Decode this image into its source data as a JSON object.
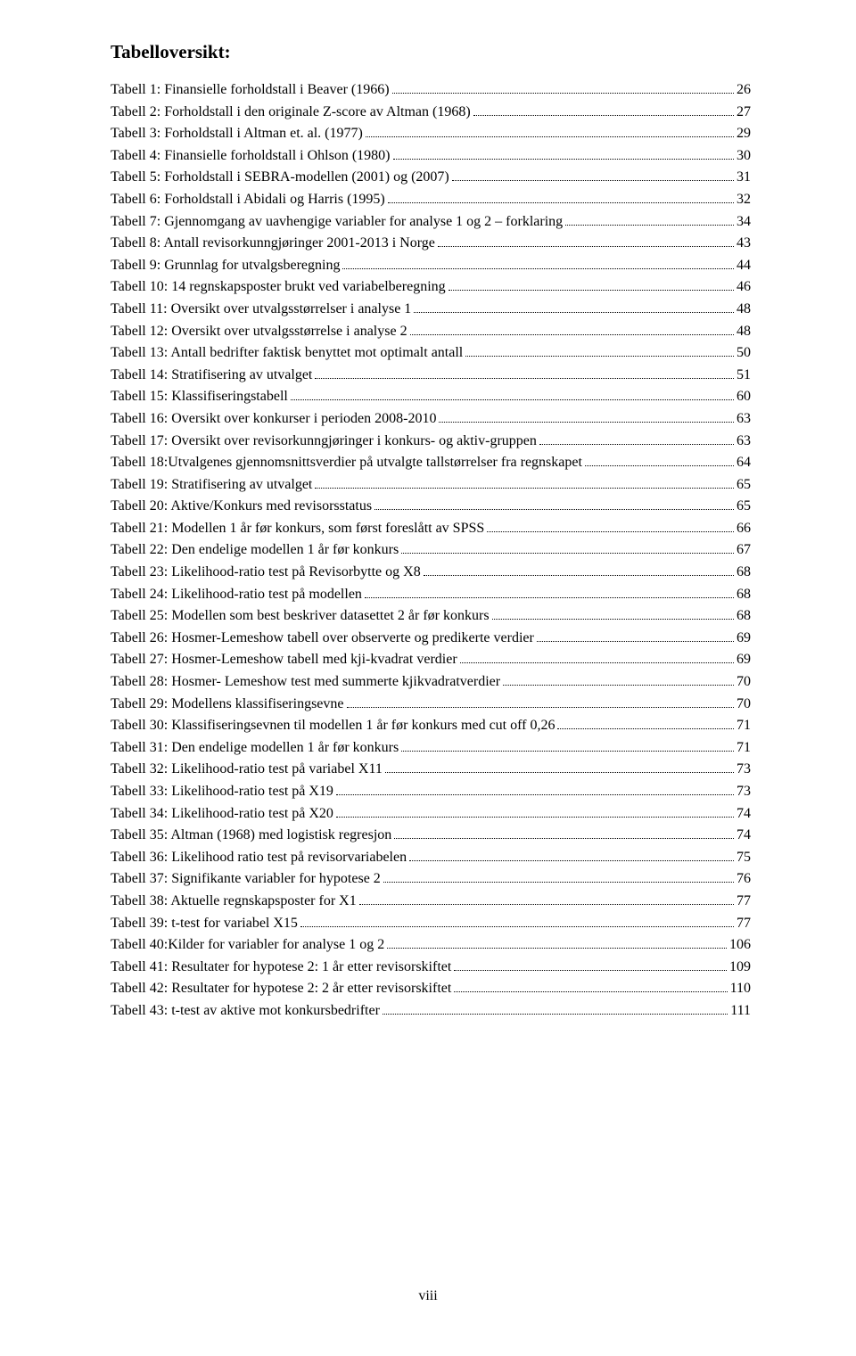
{
  "heading": "Tabelloversikt:",
  "pageFooter": "viii",
  "entries": [
    {
      "label": "Tabell 1: Finansielle forholdstall i Beaver (1966)",
      "page": "26"
    },
    {
      "label": "Tabell 2: Forholdstall i den originale Z-score av Altman (1968)",
      "page": "27"
    },
    {
      "label": "Tabell 3: Forholdstall i Altman et. al. (1977)",
      "page": "29"
    },
    {
      "label": "Tabell 4: Finansielle forholdstall i Ohlson (1980)",
      "page": "30"
    },
    {
      "label": "Tabell 5: Forholdstall i SEBRA-modellen (2001) og (2007)",
      "page": "31"
    },
    {
      "label": "Tabell 6: Forholdstall i Abidali og Harris (1995)",
      "page": "32"
    },
    {
      "label": "Tabell 7: Gjennomgang av uavhengige variabler for analyse 1 og 2 – forklaring",
      "page": "34"
    },
    {
      "label": "Tabell 8: Antall revisorkunngjøringer 2001-2013 i Norge",
      "page": "43"
    },
    {
      "label": "Tabell 9: Grunnlag for utvalgsberegning",
      "page": "44"
    },
    {
      "label": "Tabell 10: 14 regnskapsposter brukt ved variabelberegning",
      "page": "46"
    },
    {
      "label": "Tabell 11: Oversikt over utvalgsstørrelser i analyse 1",
      "page": "48"
    },
    {
      "label": "Tabell 12: Oversikt over utvalgsstørrelse i analyse 2",
      "page": "48"
    },
    {
      "label": "Tabell 13: Antall bedrifter faktisk benyttet mot optimalt antall",
      "page": "50"
    },
    {
      "label": "Tabell 14: Stratifisering av utvalget",
      "page": "51"
    },
    {
      "label": "Tabell 15: Klassifiseringstabell",
      "page": "60"
    },
    {
      "label": "Tabell 16: Oversikt over konkurser i perioden 2008-2010",
      "page": "63"
    },
    {
      "label": "Tabell 17: Oversikt over revisorkunngjøringer i konkurs- og aktiv-gruppen",
      "page": "63"
    },
    {
      "label": "Tabell 18:Utvalgenes gjennomsnittsverdier på utvalgte tallstørrelser fra regnskapet",
      "page": "64"
    },
    {
      "label": "Tabell 19: Stratifisering av utvalget",
      "page": "65"
    },
    {
      "label": "Tabell 20: Aktive/Konkurs med revisorsstatus",
      "page": "65"
    },
    {
      "label": "Tabell 21: Modellen 1 år før konkurs, som først foreslått av SPSS",
      "page": "66"
    },
    {
      "label": "Tabell 22: Den endelige modellen 1 år før konkurs",
      "page": "67"
    },
    {
      "label": "Tabell 23: Likelihood-ratio test på Revisorbytte og X8",
      "page": "68"
    },
    {
      "label": "Tabell 24: Likelihood-ratio test på modellen",
      "page": "68"
    },
    {
      "label": "Tabell 25: Modellen som best beskriver datasettet 2 år før konkurs",
      "page": "68"
    },
    {
      "label": "Tabell 26: Hosmer-Lemeshow tabell over observerte og predikerte verdier",
      "page": "69"
    },
    {
      "label": "Tabell 27: Hosmer-Lemeshow tabell med kji-kvadrat verdier",
      "page": "69"
    },
    {
      "label": "Tabell 28: Hosmer- Lemeshow test med summerte kjikvadratverdier",
      "page": "70"
    },
    {
      "label": "Tabell 29: Modellens klassifiseringsevne",
      "page": "70"
    },
    {
      "label": "Tabell 30: Klassifiseringsevnen til modellen 1 år før konkurs med cut off 0,26",
      "page": "71"
    },
    {
      "label": "Tabell 31: Den endelige modellen 1 år før konkurs",
      "page": "71"
    },
    {
      "label": "Tabell 32: Likelihood-ratio test på variabel X11",
      "page": "73"
    },
    {
      "label": "Tabell 33: Likelihood-ratio test på X19",
      "page": "73"
    },
    {
      "label": "Tabell 34: Likelihood-ratio test på X20",
      "page": "74"
    },
    {
      "label": "Tabell 35: Altman (1968) med logistisk regresjon",
      "page": "74"
    },
    {
      "label": "Tabell 36: Likelihood ratio test på revisorvariabelen",
      "page": "75"
    },
    {
      "label": "Tabell 37: Signifikante variabler for hypotese 2",
      "page": "76"
    },
    {
      "label": "Tabell 38: Aktuelle regnskapsposter for X1",
      "page": "77"
    },
    {
      "label": "Tabell 39: t-test for variabel X15",
      "page": "77"
    },
    {
      "label": "Tabell 40:Kilder for variabler for analyse 1 og 2",
      "page": "106"
    },
    {
      "label": "Tabell 41: Resultater for hypotese 2: 1 år etter revisorskiftet",
      "page": "109"
    },
    {
      "label": "Tabell 42: Resultater for hypotese 2: 2 år etter revisorskiftet",
      "page": "110"
    },
    {
      "label": "Tabell 43: t-test av aktive mot konkursbedrifter",
      "page": "111"
    }
  ]
}
